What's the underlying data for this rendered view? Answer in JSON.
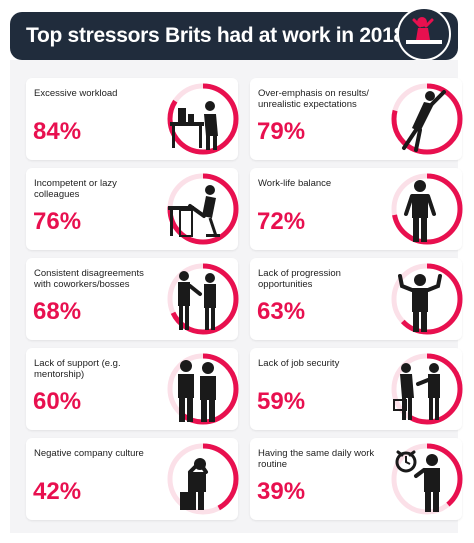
{
  "header": {
    "title": "Top stressors Brits had at work in 2018"
  },
  "colors": {
    "accent": "#e8104f",
    "ring_bg": "#fbe0e8",
    "header_bg": "#202c3c",
    "panel_bg": "#f4f4f6"
  },
  "chart_data": {
    "type": "bar",
    "title": "Top stressors Brits had at work in 2018",
    "categories": [
      "Excessive workload",
      "Over-emphasis on results/ unrealistic expectations",
      "Incompetent or lazy colleagues",
      "Work-life balance",
      "Consistent disagreements with coworkers/bosses",
      "Lack of progression opportunities",
      "Lack of support (e.g. mentorship)",
      "Lack of job security",
      "Negative company culture",
      "Having the same daily work routine"
    ],
    "values": [
      84,
      79,
      76,
      72,
      68,
      63,
      60,
      59,
      42,
      39
    ],
    "value_labels": [
      "84%",
      "79%",
      "76%",
      "72%",
      "68%",
      "63%",
      "60%",
      "59%",
      "42%",
      "39%"
    ],
    "ylim": [
      0,
      100
    ],
    "icons": [
      "person-at-desk-with-papers-icon",
      "person-leaning-on-wall-icon",
      "person-lounging-at-desk-icon",
      "person-standing-icon",
      "two-people-arguing-icon",
      "person-shrugging-icon",
      "two-people-standing-icon",
      "person-with-box-icon",
      "person-sitting-head-in-hands-icon",
      "person-with-alarm-clock-icon"
    ]
  }
}
